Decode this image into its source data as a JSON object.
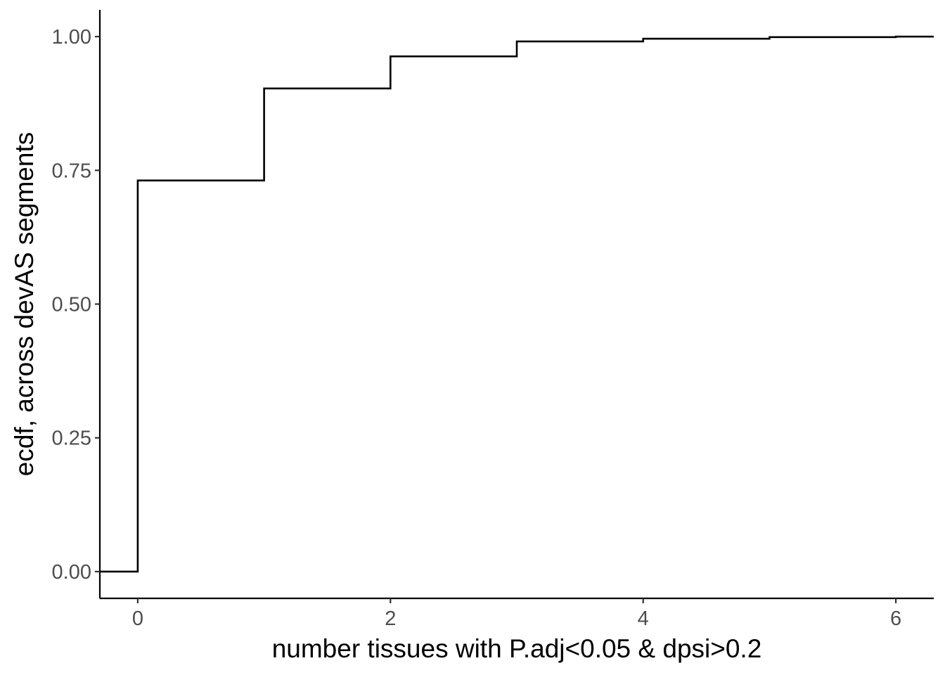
{
  "chart_data": {
    "type": "line",
    "step": true,
    "title": "",
    "xlabel": "number tissues with P.adj<0.05 & dpsi>0.2",
    "ylabel": "ecdf, across devAS segments",
    "xlim": [
      -0.3,
      6.3
    ],
    "ylim": [
      -0.05,
      1.05
    ],
    "x_ticks": [
      0,
      2,
      4,
      6
    ],
    "x_tick_labels": [
      "0",
      "2",
      "4",
      "6"
    ],
    "y_ticks": [
      0,
      0.25,
      0.5,
      0.75,
      1
    ],
    "y_tick_labels": [
      "0.00",
      "0.25",
      "0.50",
      "0.75",
      "1.00"
    ],
    "grid": false,
    "legend": "none",
    "series": [
      {
        "x": [
          -0.3,
          0,
          1,
          2,
          3,
          4,
          5,
          6,
          6.3
        ],
        "y": [
          0,
          0.731,
          0.903,
          0.963,
          0.991,
          0.996,
          0.999,
          1.0,
          1.0
        ],
        "color": "#000000"
      }
    ]
  }
}
